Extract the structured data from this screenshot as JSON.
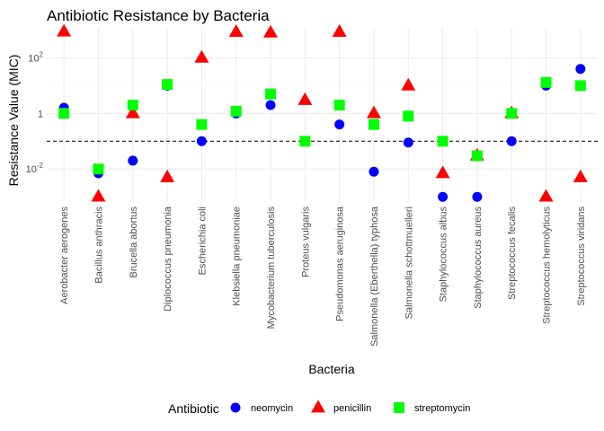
{
  "chart_data": {
    "type": "scatter",
    "title": "Antibiotic Resistance by Bacteria",
    "xlabel": "Bacteria",
    "ylabel": "Resistance Value (MIC)",
    "y_scale": "log10",
    "ylim": [
      0.0007,
      1200
    ],
    "y_ticks": [
      {
        "value": 0.01,
        "base": "10",
        "exp": "-2"
      },
      {
        "value": 1,
        "base": "1",
        "exp": "0"
      },
      {
        "value": 100,
        "base": "10",
        "exp": "2"
      }
    ],
    "reference_line": {
      "y": 0.1,
      "style": "dashed"
    },
    "grid": true,
    "legend": {
      "title": "Antibiotic",
      "position": "bottom"
    },
    "categories": [
      "Aerobacter aerogenes",
      "Bacillus anthracis",
      "Brucella abortus",
      "Diplococcus pneumonia",
      "Escherichia coli",
      "Klebsiella pneumoniae",
      "Mycobacterium tuberculosis",
      "Proteus vulgaris",
      "Pseudomonas aeruginosa",
      "Salmonella (Eberthella) typhosa",
      "Salmonella schottmuelleri",
      "Staphylococcus albus",
      "Staphylococcus aureus",
      "Streptococcus fecalis",
      "Streptococcus hemolyticus",
      "Streptococcus viridans"
    ],
    "series": [
      {
        "name": "neomycin",
        "shape": "circle",
        "color": "#0000FF",
        "values": [
          1.6,
          0.007,
          0.02,
          10,
          0.1,
          1,
          2,
          0.1,
          0.4,
          0.008,
          0.09,
          0.001,
          0.001,
          0.1,
          10,
          40
        ]
      },
      {
        "name": "penicillin",
        "shape": "triangle",
        "color": "#FF0000",
        "values": [
          870,
          0.001,
          1,
          0.005,
          100,
          850,
          800,
          3,
          850,
          1,
          10,
          0.007,
          0.03,
          1,
          0.001,
          0.005
        ]
      },
      {
        "name": "streptomycin",
        "shape": "square",
        "color": "#00FF00",
        "values": [
          1,
          0.01,
          2,
          11,
          0.4,
          1.2,
          5,
          0.1,
          2,
          0.4,
          0.8,
          0.1,
          0.03,
          1,
          13,
          10
        ]
      }
    ]
  }
}
